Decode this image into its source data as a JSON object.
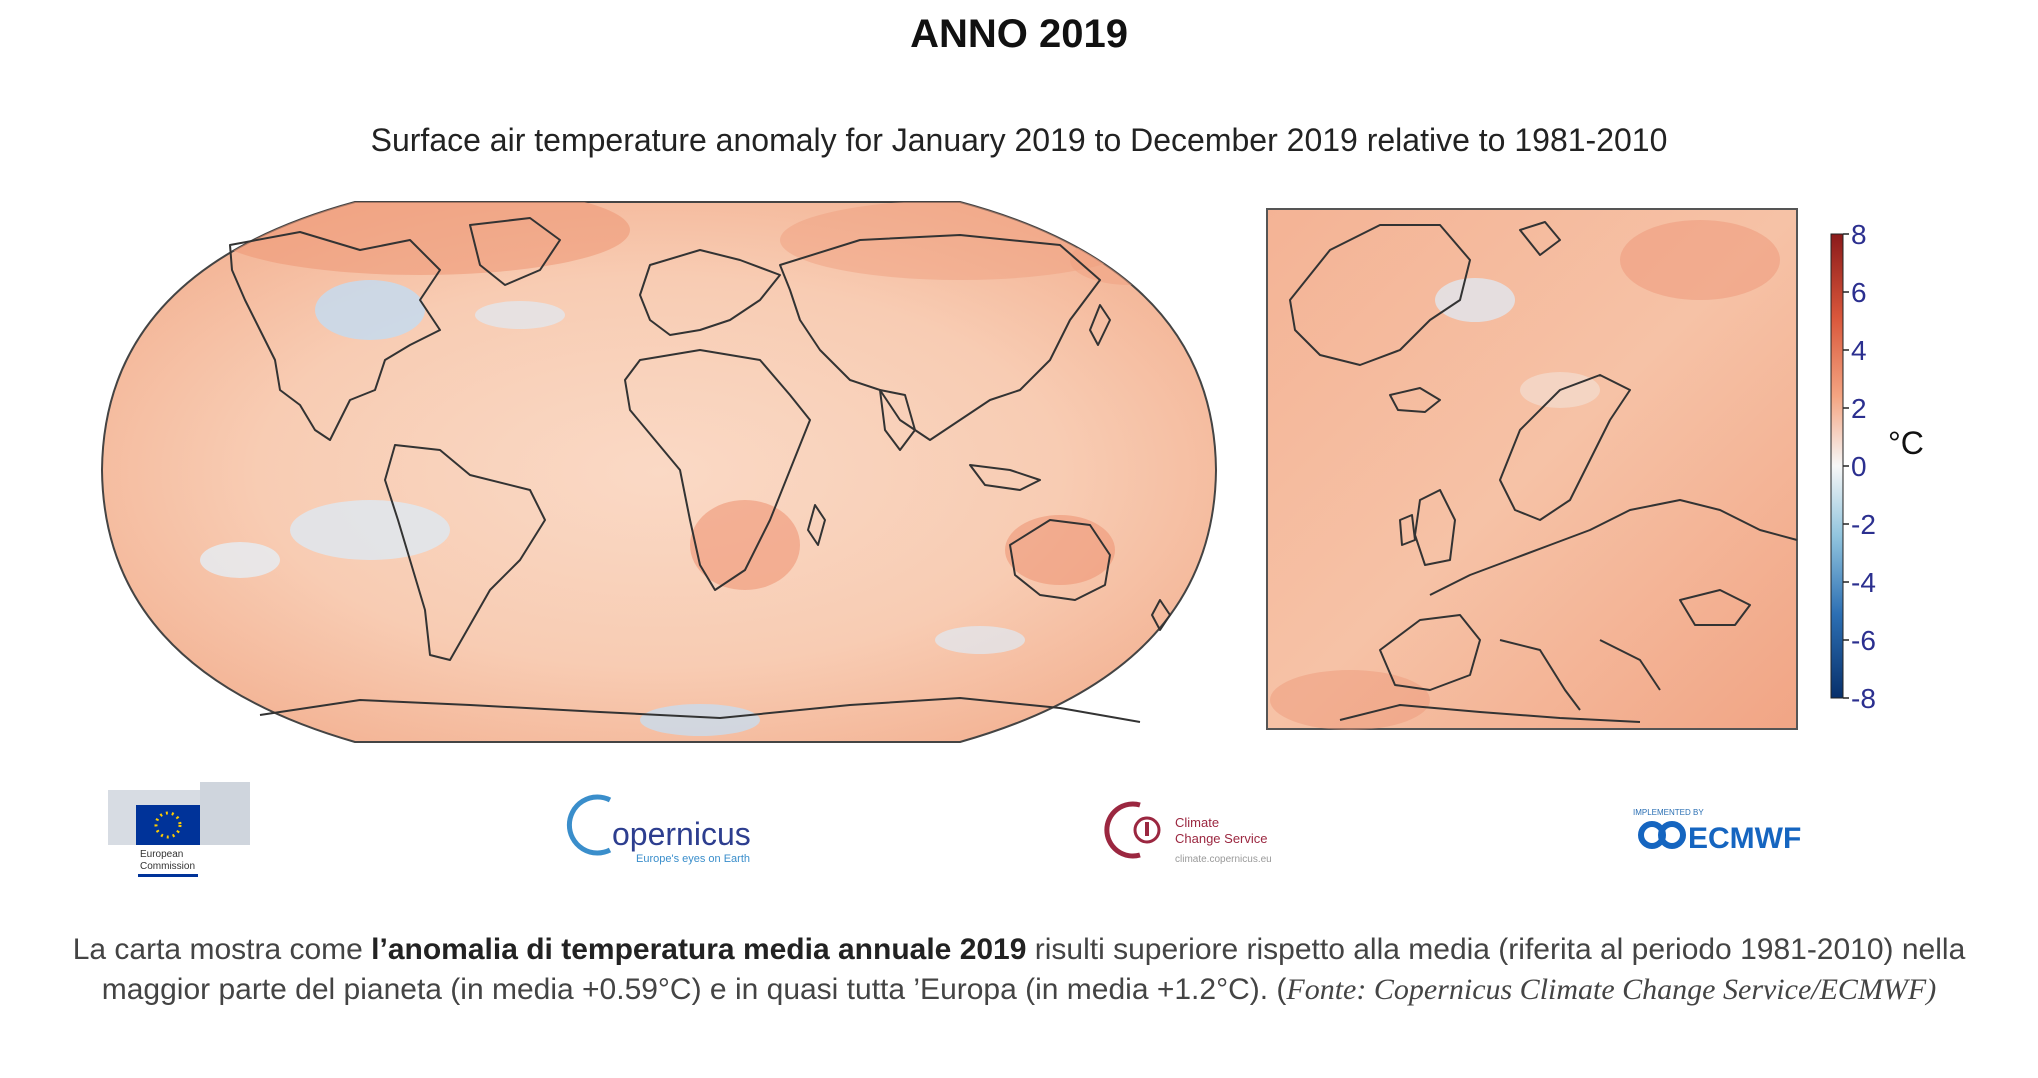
{
  "page": {
    "title": "ANNO 2019"
  },
  "map": {
    "title": "Surface air temperature anomaly for January 2019 to December 2019 relative to 1981-2010",
    "colorbar": {
      "unit": "°C",
      "ticks": [
        "8",
        "6",
        "4",
        "2",
        "0",
        "-2",
        "-4",
        "-6",
        "-8"
      ],
      "colors": {
        "max": "#8b1a1a",
        "warm": "#e8825f",
        "mild": "#f9d5c0",
        "neutral": "#f5f5f5",
        "cool": "#c6dbef",
        "cold": "#2c6fb3",
        "min": "#08306b"
      }
    }
  },
  "logos": {
    "eu_line1": "European",
    "eu_line2": "Commission",
    "copernicus_name": "opernicus",
    "copernicus_tagline": "Europe's eyes on Earth",
    "c3s_line1": "Climate",
    "c3s_line2": "Change Service",
    "c3s_url": "climate.copernicus.eu",
    "ecmwf_small": "IMPLEMENTED BY",
    "ecmwf_name": "ECMWF"
  },
  "caption": {
    "part1": "La carta mostra come ",
    "bold": "l’anomalia di temperatura media annuale 2019",
    "part2": " risulti superiore rispetto alla media (riferita al periodo 1981-2010) nella maggior parte del pianeta (in media +0.59°C) e in quasi tutta ’Europa (in media +1.2°C). (",
    "source": "Fonte: Copernicus Climate Change Service/ECMWF)"
  }
}
